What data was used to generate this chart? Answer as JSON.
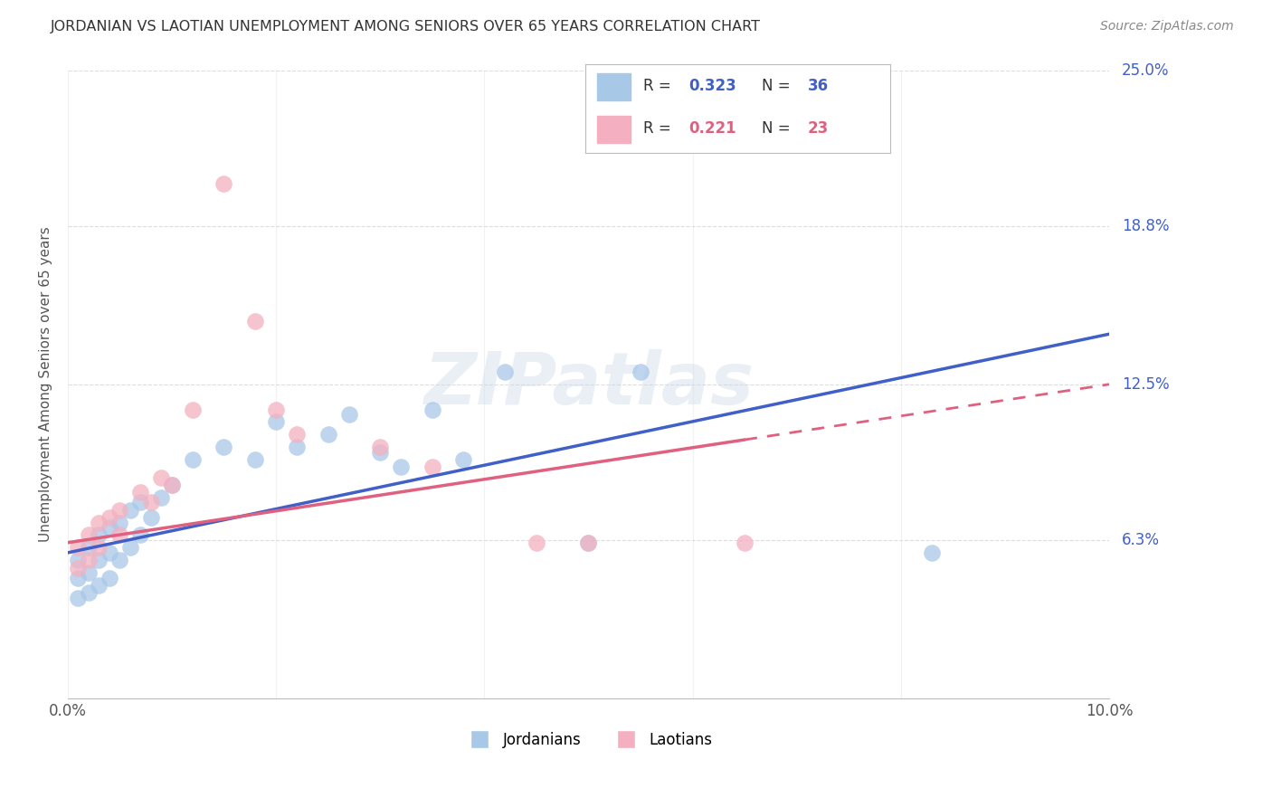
{
  "title": "JORDANIAN VS LAOTIAN UNEMPLOYMENT AMONG SENIORS OVER 65 YEARS CORRELATION CHART",
  "source": "Source: ZipAtlas.com",
  "ylabel": "Unemployment Among Seniors over 65 years",
  "xlim": [
    0.0,
    0.1
  ],
  "ylim": [
    0.0,
    0.25
  ],
  "xticks": [
    0.0,
    0.02,
    0.04,
    0.06,
    0.08,
    0.1
  ],
  "xtick_labels": [
    "0.0%",
    "",
    "",
    "",
    "",
    "10.0%"
  ],
  "ytick_labels_right": [
    "25.0%",
    "18.8%",
    "12.5%",
    "6.3%"
  ],
  "ytick_vals_right": [
    0.25,
    0.188,
    0.125,
    0.063
  ],
  "blue_color": "#A8C8E8",
  "pink_color": "#F4B0C0",
  "blue_line_color": "#4060C8",
  "pink_line_color": "#E06080",
  "right_label_color": "#4060C8",
  "title_color": "#333333",
  "source_color": "#888888",
  "watermark": "ZIPatlas",
  "legend_R_blue": "0.323",
  "legend_N_blue": "36",
  "legend_R_pink": "0.221",
  "legend_N_pink": "23",
  "jordanians_x": [
    0.001,
    0.001,
    0.001,
    0.002,
    0.002,
    0.002,
    0.003,
    0.003,
    0.003,
    0.004,
    0.004,
    0.004,
    0.005,
    0.005,
    0.006,
    0.006,
    0.007,
    0.007,
    0.008,
    0.009,
    0.01,
    0.012,
    0.015,
    0.018,
    0.02,
    0.022,
    0.025,
    0.027,
    0.03,
    0.032,
    0.035,
    0.038,
    0.042,
    0.05,
    0.055,
    0.083
  ],
  "jordanians_y": [
    0.055,
    0.048,
    0.04,
    0.06,
    0.05,
    0.042,
    0.065,
    0.055,
    0.045,
    0.068,
    0.058,
    0.048,
    0.07,
    0.055,
    0.075,
    0.06,
    0.078,
    0.065,
    0.072,
    0.08,
    0.085,
    0.095,
    0.1,
    0.095,
    0.11,
    0.1,
    0.105,
    0.113,
    0.098,
    0.092,
    0.115,
    0.095,
    0.13,
    0.062,
    0.13,
    0.058
  ],
  "laotians_x": [
    0.001,
    0.001,
    0.002,
    0.002,
    0.003,
    0.003,
    0.004,
    0.005,
    0.005,
    0.007,
    0.008,
    0.009,
    0.01,
    0.012,
    0.015,
    0.018,
    0.02,
    0.022,
    0.03,
    0.035,
    0.045,
    0.05,
    0.065
  ],
  "laotians_y": [
    0.06,
    0.052,
    0.065,
    0.055,
    0.07,
    0.06,
    0.072,
    0.075,
    0.065,
    0.082,
    0.078,
    0.088,
    0.085,
    0.115,
    0.205,
    0.15,
    0.115,
    0.105,
    0.1,
    0.092,
    0.062,
    0.062,
    0.062
  ],
  "blue_trendline_x0": 0.0,
  "blue_trendline_y0": 0.058,
  "blue_trendline_x1": 0.1,
  "blue_trendline_y1": 0.145,
  "pink_trendline_x0": 0.0,
  "pink_trendline_y0": 0.062,
  "pink_trendline_x1": 0.1,
  "pink_trendline_y1": 0.125,
  "background_color": "#FFFFFF",
  "grid_color": "#DDDDDD"
}
